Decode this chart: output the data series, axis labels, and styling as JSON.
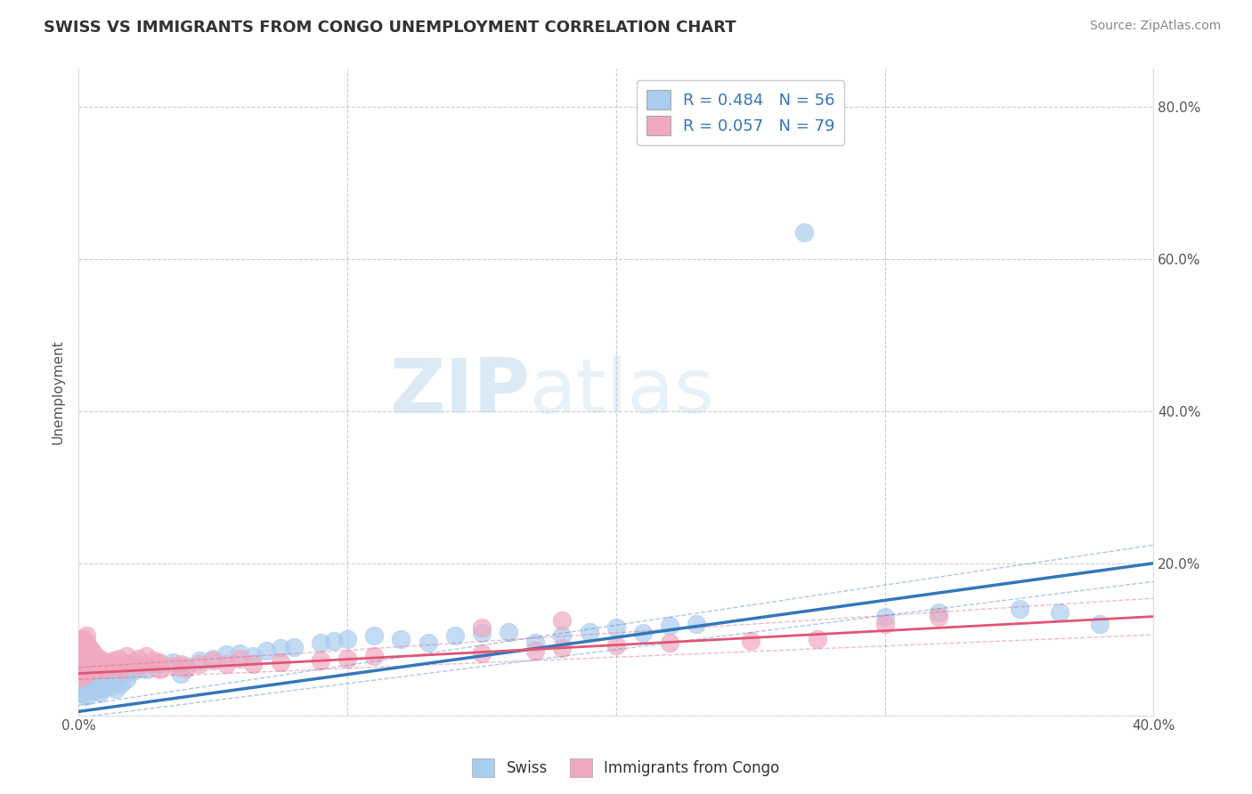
{
  "title": "SWISS VS IMMIGRANTS FROM CONGO UNEMPLOYMENT CORRELATION CHART",
  "source": "Source: ZipAtlas.com",
  "ylabel": "Unemployment",
  "xlim": [
    0.0,
    0.4
  ],
  "ylim": [
    0.0,
    0.85
  ],
  "x_tick_vals": [
    0.0,
    0.1,
    0.2,
    0.3,
    0.4
  ],
  "x_tick_labels": [
    "0.0%",
    "",
    "",
    "",
    "40.0%"
  ],
  "y_tick_vals": [
    0.0,
    0.2,
    0.4,
    0.6,
    0.8
  ],
  "y_tick_labels_left": [
    "",
    "",
    "40.0%",
    "60.0%",
    "80.0%"
  ],
  "y_tick_labels_right": [
    "",
    "20.0%",
    "40.0%",
    "60.0%",
    "80.0%"
  ],
  "legend_R1": "R = 0.484",
  "legend_N1": "N = 56",
  "legend_R2": "R = 0.057",
  "legend_N2": "N = 79",
  "swiss_color": "#aaccee",
  "congo_color": "#f0a8c0",
  "swiss_line_color": "#3377bb",
  "congo_line_color": "#e05575",
  "background_color": "#ffffff",
  "grid_color": "#cccccc",
  "swiss_R": 0.484,
  "swiss_N": 56,
  "congo_R": 0.057,
  "congo_N": 79,
  "swiss_line_y0": 0.005,
  "swiss_line_y1": 0.2,
  "congo_line_y0": 0.055,
  "congo_line_y1": 0.13,
  "swiss_scatter_x": [
    0.001,
    0.002,
    0.003,
    0.004,
    0.005,
    0.006,
    0.007,
    0.008,
    0.009,
    0.01,
    0.011,
    0.012,
    0.013,
    0.014,
    0.015,
    0.016,
    0.017,
    0.018,
    0.02,
    0.022,
    0.025,
    0.028,
    0.03,
    0.035,
    0.038,
    0.04,
    0.045,
    0.05,
    0.055,
    0.06,
    0.065,
    0.07,
    0.075,
    0.08,
    0.09,
    0.095,
    0.1,
    0.11,
    0.12,
    0.13,
    0.14,
    0.15,
    0.16,
    0.17,
    0.18,
    0.19,
    0.2,
    0.21,
    0.22,
    0.23,
    0.27,
    0.3,
    0.32,
    0.35,
    0.365,
    0.38
  ],
  "swiss_scatter_y": [
    0.03,
    0.028,
    0.025,
    0.035,
    0.04,
    0.032,
    0.038,
    0.03,
    0.035,
    0.045,
    0.042,
    0.038,
    0.048,
    0.035,
    0.05,
    0.042,
    0.055,
    0.048,
    0.058,
    0.062,
    0.06,
    0.065,
    0.068,
    0.07,
    0.055,
    0.065,
    0.072,
    0.075,
    0.08,
    0.082,
    0.078,
    0.085,
    0.088,
    0.09,
    0.095,
    0.098,
    0.1,
    0.105,
    0.1,
    0.095,
    0.105,
    0.108,
    0.11,
    0.095,
    0.105,
    0.11,
    0.115,
    0.108,
    0.118,
    0.12,
    0.635,
    0.13,
    0.135,
    0.14,
    0.135,
    0.12
  ],
  "congo_scatter_x": [
    0.001,
    0.001,
    0.001,
    0.001,
    0.001,
    0.001,
    0.001,
    0.001,
    0.001,
    0.001,
    0.002,
    0.002,
    0.002,
    0.002,
    0.002,
    0.002,
    0.002,
    0.002,
    0.003,
    0.003,
    0.003,
    0.003,
    0.003,
    0.003,
    0.004,
    0.004,
    0.004,
    0.004,
    0.005,
    0.005,
    0.005,
    0.006,
    0.006,
    0.007,
    0.007,
    0.008,
    0.008,
    0.009,
    0.01,
    0.01,
    0.011,
    0.012,
    0.013,
    0.015,
    0.015,
    0.016,
    0.018,
    0.018,
    0.02,
    0.022,
    0.022,
    0.025,
    0.025,
    0.028,
    0.03,
    0.03,
    0.035,
    0.038,
    0.04,
    0.045,
    0.05,
    0.055,
    0.06,
    0.065,
    0.075,
    0.09,
    0.1,
    0.11,
    0.15,
    0.17,
    0.18,
    0.2,
    0.22,
    0.25,
    0.275,
    0.15,
    0.18,
    0.3,
    0.32
  ],
  "congo_scatter_y": [
    0.05,
    0.06,
    0.07,
    0.08,
    0.09,
    0.1,
    0.055,
    0.065,
    0.075,
    0.085,
    0.06,
    0.07,
    0.08,
    0.09,
    0.1,
    0.055,
    0.065,
    0.075,
    0.055,
    0.065,
    0.075,
    0.085,
    0.095,
    0.105,
    0.06,
    0.07,
    0.08,
    0.09,
    0.065,
    0.075,
    0.085,
    0.07,
    0.08,
    0.06,
    0.07,
    0.065,
    0.075,
    0.068,
    0.06,
    0.07,
    0.065,
    0.068,
    0.072,
    0.065,
    0.075,
    0.06,
    0.068,
    0.078,
    0.07,
    0.065,
    0.075,
    0.068,
    0.078,
    0.072,
    0.06,
    0.07,
    0.065,
    0.068,
    0.062,
    0.068,
    0.072,
    0.068,
    0.075,
    0.068,
    0.07,
    0.072,
    0.075,
    0.078,
    0.082,
    0.085,
    0.088,
    0.092,
    0.095,
    0.098,
    0.1,
    0.115,
    0.125,
    0.12,
    0.13
  ]
}
